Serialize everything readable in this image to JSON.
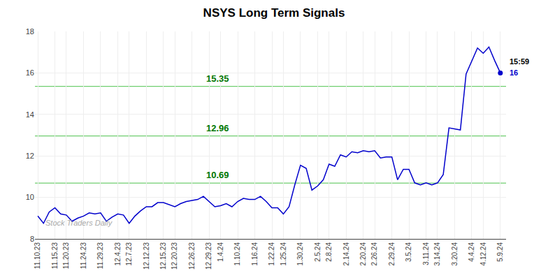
{
  "chart_data": {
    "type": "line",
    "title": "NSYS Long Term Signals",
    "categories": [
      "11.10.23",
      null,
      null,
      "11.15.23",
      null,
      "11.20.23",
      null,
      null,
      "11.24.23",
      null,
      null,
      "11.29.23",
      null,
      null,
      "12.4.23",
      null,
      "12.7.23",
      null,
      null,
      "12.12.23",
      null,
      null,
      "12.15.23",
      null,
      "12.20.23",
      null,
      null,
      "12.26.23",
      null,
      null,
      "12.29.23",
      null,
      "1.4.24",
      null,
      null,
      "1.10.24",
      null,
      null,
      "1.16.24",
      null,
      null,
      "1.22.24",
      null,
      "1.25.24",
      null,
      null,
      "1.30.24",
      null,
      null,
      "2.5.24",
      null,
      "2.8.24",
      null,
      null,
      "2.14.24",
      null,
      null,
      "2.20.24",
      null,
      "2.26.24",
      null,
      null,
      "2.29.24",
      null,
      null,
      "3.5.24",
      null,
      null,
      "3.11.24",
      null,
      "3.14.24",
      null,
      null,
      "3.20.24",
      null,
      null,
      "4.4.24",
      null,
      "4.12.24",
      null,
      null,
      "5.9.24"
    ],
    "values": [
      9.1,
      8.75,
      9.3,
      9.5,
      9.2,
      9.15,
      8.85,
      9.0,
      9.1,
      9.25,
      9.2,
      9.25,
      8.85,
      9.05,
      9.2,
      9.15,
      8.75,
      9.1,
      9.35,
      9.55,
      9.55,
      9.75,
      9.75,
      9.65,
      9.55,
      9.7,
      9.8,
      9.85,
      9.9,
      10.05,
      9.8,
      9.55,
      9.6,
      9.7,
      9.55,
      9.8,
      9.95,
      9.9,
      9.9,
      10.05,
      9.8,
      9.5,
      9.5,
      9.2,
      9.55,
      10.6,
      11.55,
      11.4,
      10.35,
      10.55,
      10.85,
      11.6,
      11.5,
      12.05,
      11.95,
      12.2,
      12.15,
      12.25,
      12.2,
      12.25,
      11.9,
      11.95,
      11.95,
      10.85,
      11.35,
      11.35,
      10.7,
      10.6,
      10.7,
      10.6,
      10.7,
      11.1,
      13.35,
      13.3,
      13.25,
      15.95,
      16.55,
      17.2,
      16.95,
      17.25,
      16.6,
      16.0
    ],
    "color": "#0000cc",
    "ylim": [
      8,
      18
    ],
    "yticks": [
      8,
      10,
      12,
      14,
      16,
      18
    ],
    "grid": true,
    "reference_lines": [
      {
        "value": 10.69,
        "label": "10.69"
      },
      {
        "value": 12.96,
        "label": "12.96"
      },
      {
        "value": 15.35,
        "label": "15.35"
      }
    ],
    "reference_line_color": "#00aa00",
    "reference_label_color": "#007700",
    "watermark": "Stock Traders Daily",
    "last_point_labels": {
      "time": "15:59",
      "value": "16"
    }
  }
}
